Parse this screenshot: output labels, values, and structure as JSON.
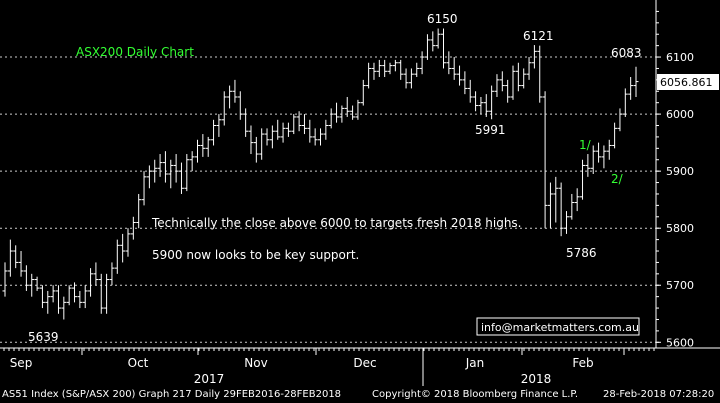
{
  "chart_data": {
    "type": "ohlc",
    "title": "ASX200 Daily Chart",
    "x_month_labels": [
      "Sep",
      "Oct",
      "Nov",
      "Dec",
      "Jan",
      "Feb"
    ],
    "x_year_labels": [
      "2017",
      "2018"
    ],
    "y_ticks": [
      5600,
      5700,
      5800,
      5900,
      6000,
      6100
    ],
    "ylim": [
      5590,
      6200
    ],
    "grid": true,
    "last_price_label": "6056.861",
    "annotations": [
      {
        "text": "6150",
        "value": 6150,
        "color": "#ffffff"
      },
      {
        "text": "6121",
        "value": 6121,
        "color": "#ffffff"
      },
      {
        "text": "6083",
        "value": 6083,
        "color": "#ffffff"
      },
      {
        "text": "5991",
        "value": 5991,
        "color": "#ffffff"
      },
      {
        "text": "5786",
        "value": 5786,
        "color": "#ffffff"
      },
      {
        "text": "5639",
        "value": 5639,
        "color": "#ffffff"
      },
      {
        "text": "1/",
        "color": "#33ff33"
      },
      {
        "text": "2/",
        "color": "#33ff33"
      },
      {
        "text": "Technically the close above 6000 to targets fresh 2018 highs.",
        "color": "#ffffff"
      },
      {
        "text": "5900 now looks to be key support.",
        "color": "#ffffff"
      }
    ],
    "watermark": "info@marketmatters.com.au",
    "series": [
      {
        "color": "#ffffff",
        "bars": [
          [
            5690,
            5740,
            5680,
            5725
          ],
          [
            5725,
            5780,
            5715,
            5760
          ],
          [
            5760,
            5770,
            5730,
            5740
          ],
          [
            5740,
            5760,
            5715,
            5725
          ],
          [
            5725,
            5735,
            5690,
            5700
          ],
          [
            5700,
            5720,
            5680,
            5710
          ],
          [
            5710,
            5715,
            5690,
            5695
          ],
          [
            5695,
            5700,
            5660,
            5670
          ],
          [
            5670,
            5690,
            5650,
            5680
          ],
          [
            5680,
            5700,
            5670,
            5690
          ],
          [
            5690,
            5700,
            5650,
            5660
          ],
          [
            5660,
            5680,
            5640,
            5670
          ],
          [
            5670,
            5700,
            5665,
            5695
          ],
          [
            5695,
            5705,
            5670,
            5680
          ],
          [
            5680,
            5690,
            5660,
            5670
          ],
          [
            5670,
            5700,
            5660,
            5690
          ],
          [
            5690,
            5730,
            5680,
            5720
          ],
          [
            5720,
            5740,
            5700,
            5710
          ],
          [
            5710,
            5720,
            5650,
            5660
          ],
          [
            5660,
            5720,
            5650,
            5710
          ],
          [
            5710,
            5740,
            5700,
            5730
          ],
          [
            5730,
            5780,
            5720,
            5770
          ],
          [
            5770,
            5790,
            5740,
            5760
          ],
          [
            5760,
            5800,
            5750,
            5790
          ],
          [
            5790,
            5820,
            5780,
            5810
          ],
          [
            5810,
            5860,
            5800,
            5850
          ],
          [
            5850,
            5900,
            5840,
            5890
          ],
          [
            5890,
            5910,
            5870,
            5900
          ],
          [
            5900,
            5920,
            5880,
            5905
          ],
          [
            5905,
            5930,
            5890,
            5915
          ],
          [
            5915,
            5935,
            5880,
            5895
          ],
          [
            5895,
            5920,
            5870,
            5910
          ],
          [
            5910,
            5930,
            5880,
            5900
          ],
          [
            5900,
            5915,
            5860,
            5870
          ],
          [
            5870,
            5930,
            5865,
            5920
          ],
          [
            5920,
            5935,
            5900,
            5925
          ],
          [
            5925,
            5955,
            5915,
            5945
          ],
          [
            5945,
            5965,
            5925,
            5940
          ],
          [
            5940,
            5960,
            5925,
            5955
          ],
          [
            5955,
            5990,
            5945,
            5980
          ],
          [
            5980,
            6000,
            5960,
            5990
          ],
          [
            5990,
            6040,
            5980,
            6030
          ],
          [
            6030,
            6050,
            6010,
            6040
          ],
          [
            6040,
            6060,
            6020,
            6030
          ],
          [
            6030,
            6040,
            5990,
            6000
          ],
          [
            6000,
            6010,
            5960,
            5970
          ],
          [
            5970,
            5980,
            5930,
            5950
          ],
          [
            5950,
            5960,
            5915,
            5930
          ],
          [
            5930,
            5975,
            5920,
            5965
          ],
          [
            5965,
            5975,
            5945,
            5955
          ],
          [
            5955,
            5980,
            5940,
            5970
          ],
          [
            5970,
            5990,
            5955,
            5960
          ],
          [
            5960,
            5985,
            5950,
            5975
          ],
          [
            5975,
            5985,
            5960,
            5970
          ],
          [
            5970,
            6000,
            5965,
            5995
          ],
          [
            5995,
            6005,
            5970,
            5980
          ],
          [
            5980,
            6000,
            5965,
            5975
          ],
          [
            5975,
            5990,
            5950,
            5960
          ],
          [
            5960,
            5975,
            5945,
            5955
          ],
          [
            5955,
            5975,
            5945,
            5965
          ],
          [
            5965,
            5990,
            5955,
            5980
          ],
          [
            5980,
            6010,
            5975,
            6000
          ],
          [
            6000,
            6020,
            5985,
            5995
          ],
          [
            5995,
            6015,
            5985,
            6010
          ],
          [
            6010,
            6030,
            5995,
            6005
          ],
          [
            6005,
            6015,
            5990,
            5995
          ],
          [
            5995,
            6025,
            5990,
            6020
          ],
          [
            6020,
            6060,
            6015,
            6050
          ],
          [
            6050,
            6090,
            6045,
            6080
          ],
          [
            6080,
            6090,
            6060,
            6075
          ],
          [
            6075,
            6095,
            6065,
            6085
          ],
          [
            6085,
            6095,
            6065,
            6075
          ],
          [
            6075,
            6090,
            6070,
            6085
          ],
          [
            6085,
            6095,
            6075,
            6090
          ],
          [
            6090,
            6095,
            6060,
            6070
          ],
          [
            6070,
            6080,
            6045,
            6055
          ],
          [
            6055,
            6080,
            6045,
            6070
          ],
          [
            6070,
            6090,
            6065,
            6080
          ],
          [
            6080,
            6110,
            6070,
            6100
          ],
          [
            6100,
            6140,
            6095,
            6130
          ],
          [
            6130,
            6145,
            6110,
            6120
          ],
          [
            6120,
            6150,
            6115,
            6140
          ],
          [
            6140,
            6150,
            6080,
            6090
          ],
          [
            6090,
            6110,
            6070,
            6080
          ],
          [
            6080,
            6100,
            6060,
            6070
          ],
          [
            6070,
            6085,
            6050,
            6060
          ],
          [
            6060,
            6075,
            6035,
            6045
          ],
          [
            6045,
            6060,
            6020,
            6030
          ],
          [
            6030,
            6040,
            6005,
            6015
          ],
          [
            6015,
            6030,
            6000,
            6020
          ],
          [
            6020,
            6035,
            5995,
            6005
          ],
          [
            6005,
            6050,
            5991,
            6040
          ],
          [
            6040,
            6070,
            6030,
            6060
          ],
          [
            6060,
            6075,
            6040,
            6050
          ],
          [
            6050,
            6060,
            6020,
            6030
          ],
          [
            6030,
            6085,
            6025,
            6075
          ],
          [
            6075,
            6090,
            6040,
            6050
          ],
          [
            6050,
            6080,
            6045,
            6070
          ],
          [
            6070,
            6100,
            6060,
            6090
          ],
          [
            6090,
            6121,
            6080,
            6110
          ],
          [
            6110,
            6120,
            6020,
            6030
          ],
          [
            6030,
            6040,
            5800,
            5840
          ],
          [
            5840,
            5880,
            5800,
            5860
          ],
          [
            5860,
            5890,
            5810,
            5870
          ],
          [
            5870,
            5880,
            5786,
            5800
          ],
          [
            5800,
            5830,
            5790,
            5820
          ],
          [
            5820,
            5860,
            5815,
            5845
          ],
          [
            5845,
            5870,
            5830,
            5855
          ],
          [
            5855,
            5920,
            5850,
            5910
          ],
          [
            5910,
            5930,
            5890,
            5905
          ],
          [
            5905,
            5945,
            5895,
            5935
          ],
          [
            5935,
            5950,
            5915,
            5925
          ],
          [
            5925,
            5945,
            5905,
            5935
          ],
          [
            5935,
            5955,
            5920,
            5945
          ],
          [
            5945,
            5985,
            5940,
            5975
          ],
          [
            5975,
            6010,
            5970,
            6000
          ],
          [
            6000,
            6045,
            5995,
            6035
          ],
          [
            6035,
            6065,
            6025,
            6050
          ],
          [
            6050,
            6083,
            6030,
            6057
          ]
        ]
      }
    ]
  },
  "footer": {
    "left": "AS51 Index (S&P/ASX 200) Graph 217  Daily 29FEB2016-28FEB2018",
    "center": "Copyright© 2018 Bloomberg Finance L.P.",
    "right": "28-Feb-2018 07:28:20"
  }
}
